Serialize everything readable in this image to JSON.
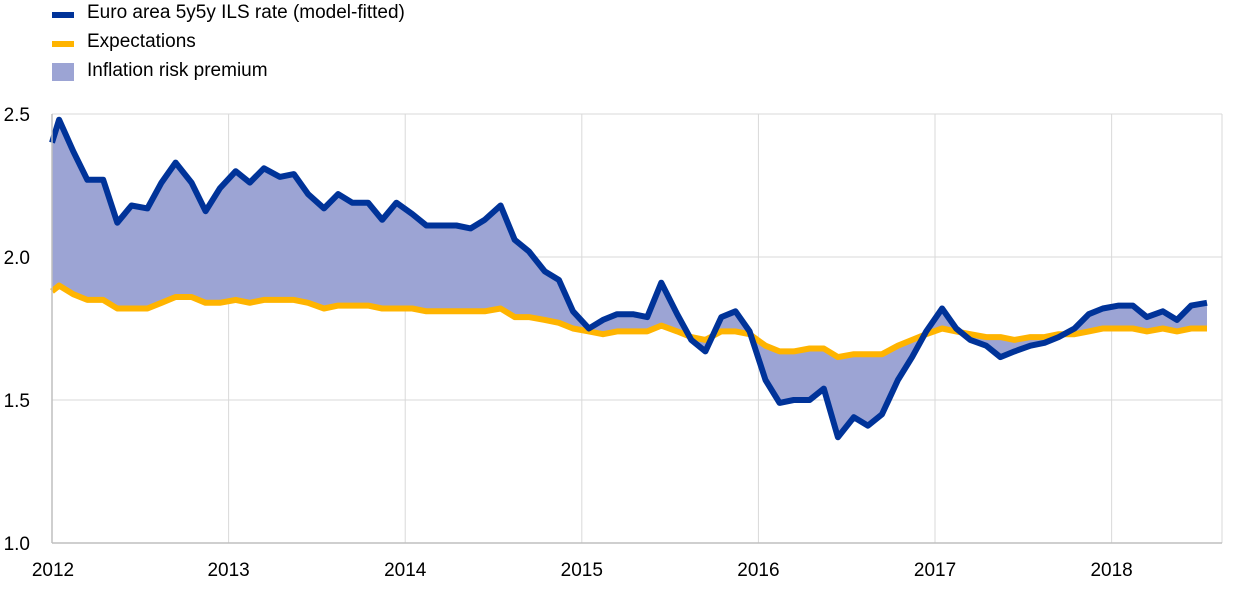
{
  "colors": {
    "model_fitted": "#003399",
    "expectations": "#FFB400",
    "risk_premium": "#9CA4D4",
    "grid": "#D9D9D9",
    "axis": "#BFBFBF"
  },
  "legend": [
    {
      "key": "model",
      "label": "Euro area 5y5y ILS rate (model-fitted)",
      "swatch": "line"
    },
    {
      "key": "expectations",
      "label": "Expectations",
      "swatch": "line"
    },
    {
      "key": "premium",
      "label": "Inflation risk premium",
      "swatch": "area"
    }
  ],
  "chart_data": {
    "type": "area",
    "xlim": [
      2012.0,
      2018.625
    ],
    "ylim": [
      1.0,
      2.5
    ],
    "yticks": [
      1.0,
      1.5,
      2.0,
      2.5
    ],
    "ytick_labels": [
      "1.0",
      "1.5",
      "2.0",
      "2.5"
    ],
    "xticks": [
      2012,
      2013,
      2014,
      2015,
      2016,
      2017,
      2018
    ],
    "xtick_labels": [
      "2012",
      "2013",
      "2014",
      "2015",
      "2016",
      "2017",
      "2018"
    ],
    "grid": "vertical and horizontal",
    "legend_position": "top-left",
    "x": [
      2012.0,
      2012.04,
      2012.12,
      2012.2,
      2012.29,
      2012.37,
      2012.45,
      2012.54,
      2012.62,
      2012.7,
      2012.79,
      2012.87,
      2012.95,
      2013.04,
      2013.12,
      2013.2,
      2013.29,
      2013.37,
      2013.45,
      2013.54,
      2013.62,
      2013.7,
      2013.79,
      2013.87,
      2013.95,
      2014.04,
      2014.12,
      2014.2,
      2014.29,
      2014.37,
      2014.45,
      2014.54,
      2014.62,
      2014.7,
      2014.79,
      2014.87,
      2014.95,
      2015.04,
      2015.12,
      2015.2,
      2015.29,
      2015.37,
      2015.45,
      2015.54,
      2015.62,
      2015.7,
      2015.79,
      2015.87,
      2015.95,
      2016.04,
      2016.12,
      2016.2,
      2016.29,
      2016.37,
      2016.45,
      2016.54,
      2016.62,
      2016.7,
      2016.79,
      2016.87,
      2016.95,
      2017.04,
      2017.12,
      2017.2,
      2017.29,
      2017.37,
      2017.45,
      2017.54,
      2017.62,
      2017.7,
      2017.79,
      2017.87,
      2017.95,
      2018.04,
      2018.12,
      2018.2,
      2018.29,
      2018.37,
      2018.45,
      2018.54
    ],
    "series": [
      {
        "name": "Euro area 5y5y ILS rate (model-fitted)",
        "color": "#003399",
        "values": [
          2.4,
          2.48,
          2.37,
          2.27,
          2.27,
          2.12,
          2.18,
          2.17,
          2.26,
          2.33,
          2.26,
          2.16,
          2.24,
          2.3,
          2.26,
          2.31,
          2.28,
          2.29,
          2.22,
          2.17,
          2.22,
          2.19,
          2.19,
          2.13,
          2.19,
          2.15,
          2.11,
          2.11,
          2.11,
          2.1,
          2.13,
          2.18,
          2.06,
          2.02,
          1.95,
          1.92,
          1.81,
          1.75,
          1.78,
          1.8,
          1.8,
          1.79,
          1.91,
          1.8,
          1.71,
          1.67,
          1.79,
          1.81,
          1.74,
          1.57,
          1.49,
          1.5,
          1.5,
          1.54,
          1.37,
          1.44,
          1.41,
          1.45,
          1.57,
          1.65,
          1.74,
          1.82,
          1.75,
          1.71,
          1.69,
          1.65,
          1.67,
          1.69,
          1.7,
          1.72,
          1.75,
          1.8,
          1.82,
          1.83,
          1.83,
          1.79,
          1.81,
          1.78,
          1.83,
          1.84
        ]
      },
      {
        "name": "Expectations",
        "color": "#FFB400",
        "values": [
          1.88,
          1.9,
          1.87,
          1.85,
          1.85,
          1.82,
          1.82,
          1.82,
          1.84,
          1.86,
          1.86,
          1.84,
          1.84,
          1.85,
          1.84,
          1.85,
          1.85,
          1.85,
          1.84,
          1.82,
          1.83,
          1.83,
          1.83,
          1.82,
          1.82,
          1.82,
          1.81,
          1.81,
          1.81,
          1.81,
          1.81,
          1.82,
          1.79,
          1.79,
          1.78,
          1.77,
          1.75,
          1.74,
          1.73,
          1.74,
          1.74,
          1.74,
          1.76,
          1.74,
          1.72,
          1.71,
          1.74,
          1.74,
          1.73,
          1.69,
          1.67,
          1.67,
          1.68,
          1.68,
          1.65,
          1.66,
          1.66,
          1.66,
          1.69,
          1.71,
          1.73,
          1.75,
          1.74,
          1.73,
          1.72,
          1.72,
          1.71,
          1.72,
          1.72,
          1.73,
          1.73,
          1.74,
          1.75,
          1.75,
          1.75,
          1.74,
          1.75,
          1.74,
          1.75,
          1.75
        ]
      }
    ],
    "fill": {
      "name": "Inflation risk premium",
      "between": [
        "Euro area 5y5y ILS rate (model-fitted)",
        "Expectations"
      ],
      "color": "#9CA4D4"
    }
  }
}
